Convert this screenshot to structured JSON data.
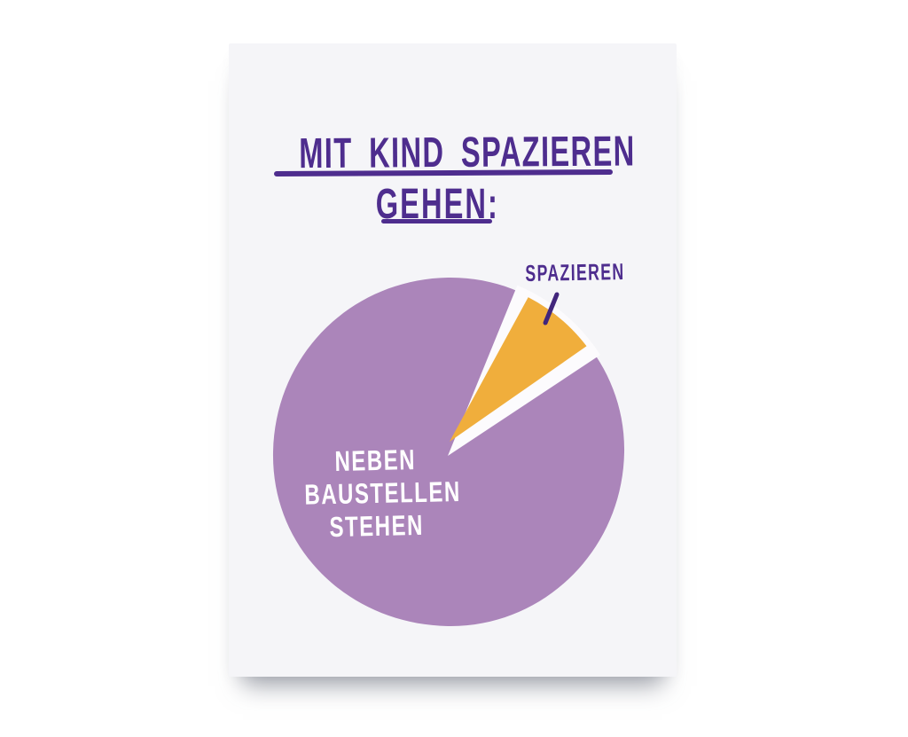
{
  "poster": {
    "title_line1": "MIT KIND SPAZIEREN",
    "title_line2": "GEHEN:",
    "annotation_small_slice": "SPAZIEREN",
    "large_slice_label_lines": [
      "NEBEN",
      "BAUSTELLEN",
      "STEHEN"
    ]
  },
  "colors": {
    "page_bg": "#ffffff",
    "card_bg": "#f5f5f8",
    "title_text": "#4e2d8e",
    "slice_large": "#ab85ba",
    "slice_small": "#f0ae3c",
    "slice_gap": "#fcfbfd",
    "pointer": "#42267c",
    "label_on_slice": "#ffffff"
  },
  "chart_data": {
    "type": "pie",
    "title": "MIT KIND SPAZIEREN GEHEN:",
    "slices": [
      {
        "label": "NEBEN BAUSTELLEN STEHEN",
        "value_pct": 93,
        "color": "#ab85ba"
      },
      {
        "label": "SPAZIEREN",
        "value_pct": 7,
        "color": "#f0ae3c"
      }
    ],
    "legend_position": "none",
    "annotations": [
      {
        "text": "SPAZIEREN",
        "target": "small-slice"
      }
    ],
    "style": "hand-drawn illustration on postcard"
  }
}
